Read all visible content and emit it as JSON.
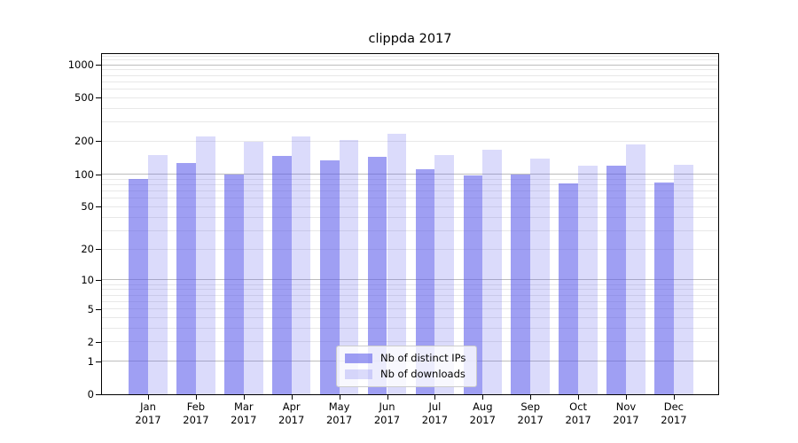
{
  "chart_data": {
    "type": "bar",
    "title": "clippda 2017",
    "xlabel": "",
    "ylabel": "",
    "yscale": "log1p",
    "ylim": [
      0,
      1250
    ],
    "y_ticks": [
      0,
      1,
      2,
      5,
      10,
      20,
      50,
      100,
      200,
      500,
      1000
    ],
    "grid": "major and minor horizontal gridlines",
    "legend_position": "lower center",
    "categories": [
      "Jan 2017",
      "Feb 2017",
      "Mar 2017",
      "Apr 2017",
      "May 2017",
      "Jun 2017",
      "Jul 2017",
      "Aug 2017",
      "Sep 2017",
      "Oct 2017",
      "Nov 2017",
      "Dec 2017"
    ],
    "series": [
      {
        "name": "Nb of distinct IPs",
        "values": [
          90,
          127,
          100,
          147,
          134,
          145,
          111,
          97,
          100,
          82,
          120,
          84
        ]
      },
      {
        "name": "Nb of downloads",
        "values": [
          150,
          220,
          198,
          220,
          205,
          234,
          150,
          168,
          139,
          120,
          187,
          122
        ]
      }
    ]
  },
  "colors": {
    "bar_ips": "rgba(90,90,235,0.58)",
    "bar_downloads": "rgba(90,90,235,0.22)",
    "grid_major": "#bdbdbd",
    "grid_minor": "#e8e8e8",
    "spine": "#000000",
    "legend_border": "#cccccc",
    "legend_bg": "rgba(255,255,255,0.8)"
  }
}
